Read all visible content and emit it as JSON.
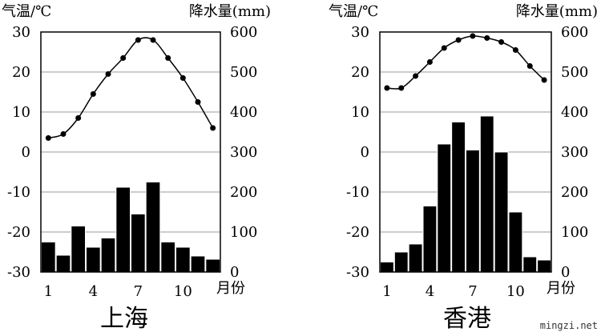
{
  "chart_data": [
    {
      "type": "bar+line",
      "title": "上海",
      "left_axis_label": "气温/℃",
      "right_axis_label": "降水量(mm)",
      "x_unit_label": "月份",
      "x": [
        1,
        2,
        3,
        4,
        5,
        6,
        7,
        8,
        9,
        10,
        11,
        12
      ],
      "x_tick_labels": [
        "1",
        "4",
        "7",
        "10"
      ],
      "temperature": [
        3.5,
        4.5,
        8.5,
        14.5,
        19.5,
        23.5,
        28,
        28,
        23.5,
        18.5,
        12.5,
        6
      ],
      "precipitation": [
        75,
        42,
        115,
        62,
        85,
        212,
        145,
        225,
        75,
        62,
        40,
        32
      ],
      "temp_ylim": [
        -30,
        30
      ],
      "temp_ticks": [
        "30",
        "20",
        "10",
        "0",
        "-10",
        "-20",
        "-30"
      ],
      "precip_ylim": [
        0,
        600
      ],
      "precip_ticks": [
        "600",
        "500",
        "400",
        "300",
        "200",
        "100",
        "0"
      ],
      "grid": true
    },
    {
      "type": "bar+line",
      "title": "香港",
      "left_axis_label": "气温/℃",
      "right_axis_label": "降水量(mm)",
      "x_unit_label": "月份",
      "x": [
        1,
        2,
        3,
        4,
        5,
        6,
        7,
        8,
        9,
        10,
        11,
        12
      ],
      "x_tick_labels": [
        "1",
        "4",
        "7",
        "10"
      ],
      "temperature": [
        16,
        16,
        19,
        22.5,
        26,
        28,
        29,
        28.5,
        27.5,
        25.5,
        21.5,
        18
      ],
      "precipitation": [
        25,
        50,
        70,
        165,
        320,
        375,
        305,
        390,
        300,
        150,
        38,
        30
      ],
      "temp_ylim": [
        -30,
        30
      ],
      "temp_ticks": [
        "30",
        "20",
        "10",
        "0",
        "-10",
        "-20",
        "-30"
      ],
      "precip_ylim": [
        0,
        600
      ],
      "precip_ticks": [
        "600",
        "500",
        "400",
        "300",
        "200",
        "100",
        "0"
      ],
      "grid": true
    }
  ],
  "watermark": "mingzi.net"
}
